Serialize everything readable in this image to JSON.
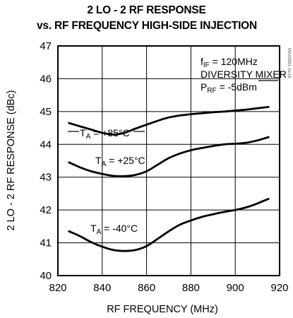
{
  "chart_data": {
    "type": "line",
    "title_line1": "2 LO - 2 RF RESPONSE",
    "title_line2": "vs. RF FREQUENCY HIGH-SIDE INJECTION",
    "xlabel": "RF FREQUENCY (MHz)",
    "ylabel": "2 LO - 2 RF RESPONSE (dBc)",
    "xlim": [
      820,
      920
    ],
    "ylim": [
      40,
      47
    ],
    "xticks": [
      "820",
      "840",
      "860",
      "880",
      "900",
      "920"
    ],
    "yticks": [
      "40",
      "41",
      "42",
      "43",
      "44",
      "45",
      "46",
      "47"
    ],
    "grid": true,
    "conditions": {
      "fif_main": "f",
      "fif_sub": "IF",
      "fif_rest": " = 120MHz",
      "mode": "DIVERSITY MIXER",
      "prf_main": "P",
      "prf_sub": "RF",
      "prf_rest": " = -5dBm"
    },
    "watermark": "MAX9991 toc16",
    "series": [
      {
        "label_main": "T",
        "label_sub": "A",
        "label_rest": " = +85°C",
        "x": [
          825,
          830,
          835,
          840,
          845,
          850,
          855,
          860,
          865,
          870,
          875,
          880,
          885,
          890,
          895,
          900,
          905,
          910,
          915
        ],
        "y": [
          44.65,
          44.55,
          44.45,
          44.35,
          44.3,
          44.35,
          44.48,
          44.6,
          44.72,
          44.82,
          44.88,
          44.92,
          44.95,
          44.98,
          45.0,
          45.03,
          45.06,
          45.1,
          45.14
        ]
      },
      {
        "label_main": "T",
        "label_sub": "A",
        "label_rest": " = +25°C",
        "x": [
          825,
          830,
          835,
          840,
          845,
          850,
          855,
          860,
          865,
          870,
          875,
          880,
          885,
          890,
          895,
          900,
          905,
          910,
          915
        ],
        "y": [
          43.45,
          43.3,
          43.18,
          43.1,
          43.04,
          43.03,
          43.07,
          43.18,
          43.38,
          43.58,
          43.72,
          43.82,
          43.89,
          43.95,
          44.0,
          44.02,
          44.05,
          44.12,
          44.22
        ]
      },
      {
        "label_main": "T",
        "label_sub": "A",
        "label_rest": " = -40°C",
        "x": [
          825,
          830,
          835,
          840,
          845,
          850,
          855,
          860,
          865,
          870,
          875,
          880,
          885,
          890,
          895,
          900,
          905,
          910,
          915
        ],
        "y": [
          41.35,
          41.2,
          41.02,
          40.88,
          40.78,
          40.75,
          40.78,
          40.9,
          41.12,
          41.35,
          41.55,
          41.68,
          41.79,
          41.87,
          41.94,
          42.0,
          42.08,
          42.2,
          42.34
        ]
      }
    ]
  }
}
